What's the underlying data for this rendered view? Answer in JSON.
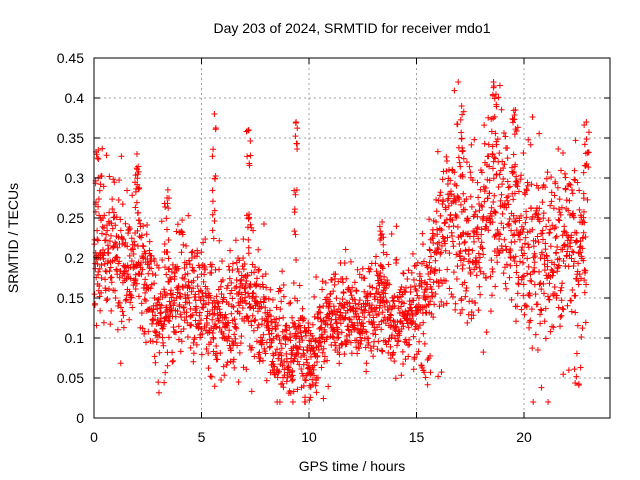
{
  "chart_data": {
    "type": "scatter",
    "title": "Day 203 of 2024, SRMTID for receiver mdo1",
    "xlabel": "GPS time / hours",
    "ylabel": "SRMTID / TECUs",
    "xlim": [
      0,
      24
    ],
    "ylim": [
      0,
      0.45
    ],
    "xticks": [
      "0",
      "5",
      "10",
      "15",
      "20"
    ],
    "yticks": [
      "0",
      "0.05",
      "0.1",
      "0.15",
      "0.2",
      "0.25",
      "0.3",
      "0.35",
      "0.4",
      "0.45"
    ],
    "grid": true,
    "marker": "+",
    "color": "#ff0000",
    "trend": [
      {
        "x": 0.0,
        "y": 0.17
      },
      {
        "x": 0.5,
        "y": 0.21
      },
      {
        "x": 1.0,
        "y": 0.2
      },
      {
        "x": 1.5,
        "y": 0.19
      },
      {
        "x": 2.0,
        "y": 0.21
      },
      {
        "x": 2.5,
        "y": 0.16
      },
      {
        "x": 3.0,
        "y": 0.12
      },
      {
        "x": 3.5,
        "y": 0.14
      },
      {
        "x": 4.0,
        "y": 0.16
      },
      {
        "x": 4.5,
        "y": 0.15
      },
      {
        "x": 5.0,
        "y": 0.15
      },
      {
        "x": 5.5,
        "y": 0.12
      },
      {
        "x": 6.0,
        "y": 0.12
      },
      {
        "x": 6.5,
        "y": 0.13
      },
      {
        "x": 7.0,
        "y": 0.15
      },
      {
        "x": 7.5,
        "y": 0.15
      },
      {
        "x": 8.0,
        "y": 0.11
      },
      {
        "x": 8.5,
        "y": 0.09
      },
      {
        "x": 9.0,
        "y": 0.08
      },
      {
        "x": 9.5,
        "y": 0.1
      },
      {
        "x": 10.0,
        "y": 0.07
      },
      {
        "x": 10.5,
        "y": 0.1
      },
      {
        "x": 11.0,
        "y": 0.13
      },
      {
        "x": 11.5,
        "y": 0.13
      },
      {
        "x": 12.0,
        "y": 0.14
      },
      {
        "x": 12.5,
        "y": 0.13
      },
      {
        "x": 13.0,
        "y": 0.14
      },
      {
        "x": 13.5,
        "y": 0.14
      },
      {
        "x": 14.0,
        "y": 0.12
      },
      {
        "x": 14.5,
        "y": 0.13
      },
      {
        "x": 15.0,
        "y": 0.13
      },
      {
        "x": 15.5,
        "y": 0.15
      },
      {
        "x": 16.0,
        "y": 0.22
      },
      {
        "x": 16.5,
        "y": 0.24
      },
      {
        "x": 17.0,
        "y": 0.23
      },
      {
        "x": 17.5,
        "y": 0.21
      },
      {
        "x": 18.0,
        "y": 0.24
      },
      {
        "x": 18.5,
        "y": 0.27
      },
      {
        "x": 19.0,
        "y": 0.26
      },
      {
        "x": 19.5,
        "y": 0.24
      },
      {
        "x": 20.0,
        "y": 0.22
      },
      {
        "x": 20.5,
        "y": 0.2
      },
      {
        "x": 21.0,
        "y": 0.21
      },
      {
        "x": 21.5,
        "y": 0.2
      },
      {
        "x": 22.0,
        "y": 0.21
      },
      {
        "x": 22.5,
        "y": 0.21
      },
      {
        "x": 22.9,
        "y": 0.2
      }
    ],
    "spread": [
      {
        "x": 0.0,
        "s": 0.04
      },
      {
        "x": 2.0,
        "s": 0.04
      },
      {
        "x": 3.0,
        "s": 0.04
      },
      {
        "x": 8.0,
        "s": 0.035
      },
      {
        "x": 10.0,
        "s": 0.03
      },
      {
        "x": 15.5,
        "s": 0.035
      },
      {
        "x": 16.0,
        "s": 0.06
      },
      {
        "x": 23.0,
        "s": 0.06
      }
    ],
    "peaks": [
      {
        "x": 0.2,
        "y": 0.335
      },
      {
        "x": 2.0,
        "y": 0.33
      },
      {
        "x": 3.4,
        "y": 0.275
      },
      {
        "x": 5.6,
        "y": 0.38
      },
      {
        "x": 7.2,
        "y": 0.36
      },
      {
        "x": 9.4,
        "y": 0.37
      },
      {
        "x": 13.4,
        "y": 0.245
      },
      {
        "x": 17.1,
        "y": 0.39
      },
      {
        "x": 18.6,
        "y": 0.415
      },
      {
        "x": 19.6,
        "y": 0.385
      },
      {
        "x": 22.9,
        "y": 0.37
      }
    ],
    "lows": [
      {
        "x": 9.1,
        "y": 0.03
      },
      {
        "x": 10.2,
        "y": 0.02
      },
      {
        "x": 22.5,
        "y": 0.04
      },
      {
        "x": 15.5,
        "y": 0.05
      }
    ]
  }
}
